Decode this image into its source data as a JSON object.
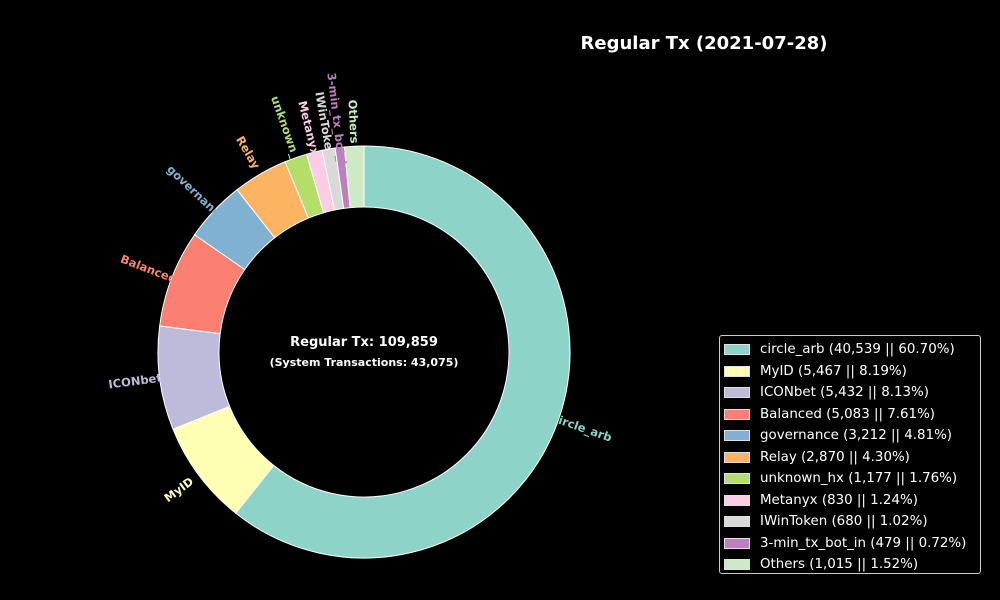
{
  "chart_data": {
    "type": "pie",
    "title": "Regular Tx (2021-07-28)",
    "center_text": "Regular Tx: 109,859",
    "center_subtext": "(System Transactions: 43,075)",
    "legend_position": "lower-right",
    "slices": [
      {
        "label": "circle_arb",
        "value": 40539,
        "percent": 60.7,
        "legend": "circle_arb (40,539 || 60.70%)",
        "color": "#8dd3c7"
      },
      {
        "label": "MyID",
        "value": 5467,
        "percent": 8.19,
        "legend": "MyID (5,467 || 8.19%)",
        "color": "#ffffb3"
      },
      {
        "label": "ICONbet",
        "value": 5432,
        "percent": 8.13,
        "legend": "ICONbet (5,432 || 8.13%)",
        "color": "#bebada"
      },
      {
        "label": "Balanced",
        "value": 5083,
        "percent": 7.61,
        "legend": "Balanced (5,083 || 7.61%)",
        "color": "#fb8072"
      },
      {
        "label": "governance",
        "value": 3212,
        "percent": 4.81,
        "legend": "governance (3,212 || 4.81%)",
        "color": "#80b1d3"
      },
      {
        "label": "Relay",
        "value": 2870,
        "percent": 4.3,
        "legend": "Relay (2,870 || 4.30%)",
        "color": "#fdb462"
      },
      {
        "label": "unknown_hx",
        "value": 1177,
        "percent": 1.76,
        "legend": "unknown_hx (1,177 || 1.76%)",
        "color": "#b3de69"
      },
      {
        "label": "Metanyx",
        "value": 830,
        "percent": 1.24,
        "legend": "Metanyx (830 || 1.24%)",
        "color": "#fccde5"
      },
      {
        "label": "IWinToken",
        "value": 680,
        "percent": 1.02,
        "legend": "IWinToken (680 || 1.02%)",
        "color": "#d9d9d9"
      },
      {
        "label": "3-min_tx_bot_in",
        "value": 479,
        "percent": 0.72,
        "legend": "3-min_tx_bot_in (479 || 0.72%)",
        "color": "#bc80bd"
      },
      {
        "label": "Others",
        "value": 1015,
        "percent": 1.52,
        "legend": "Others (1,015 || 1.52%)",
        "color": "#ccebc5"
      }
    ]
  }
}
